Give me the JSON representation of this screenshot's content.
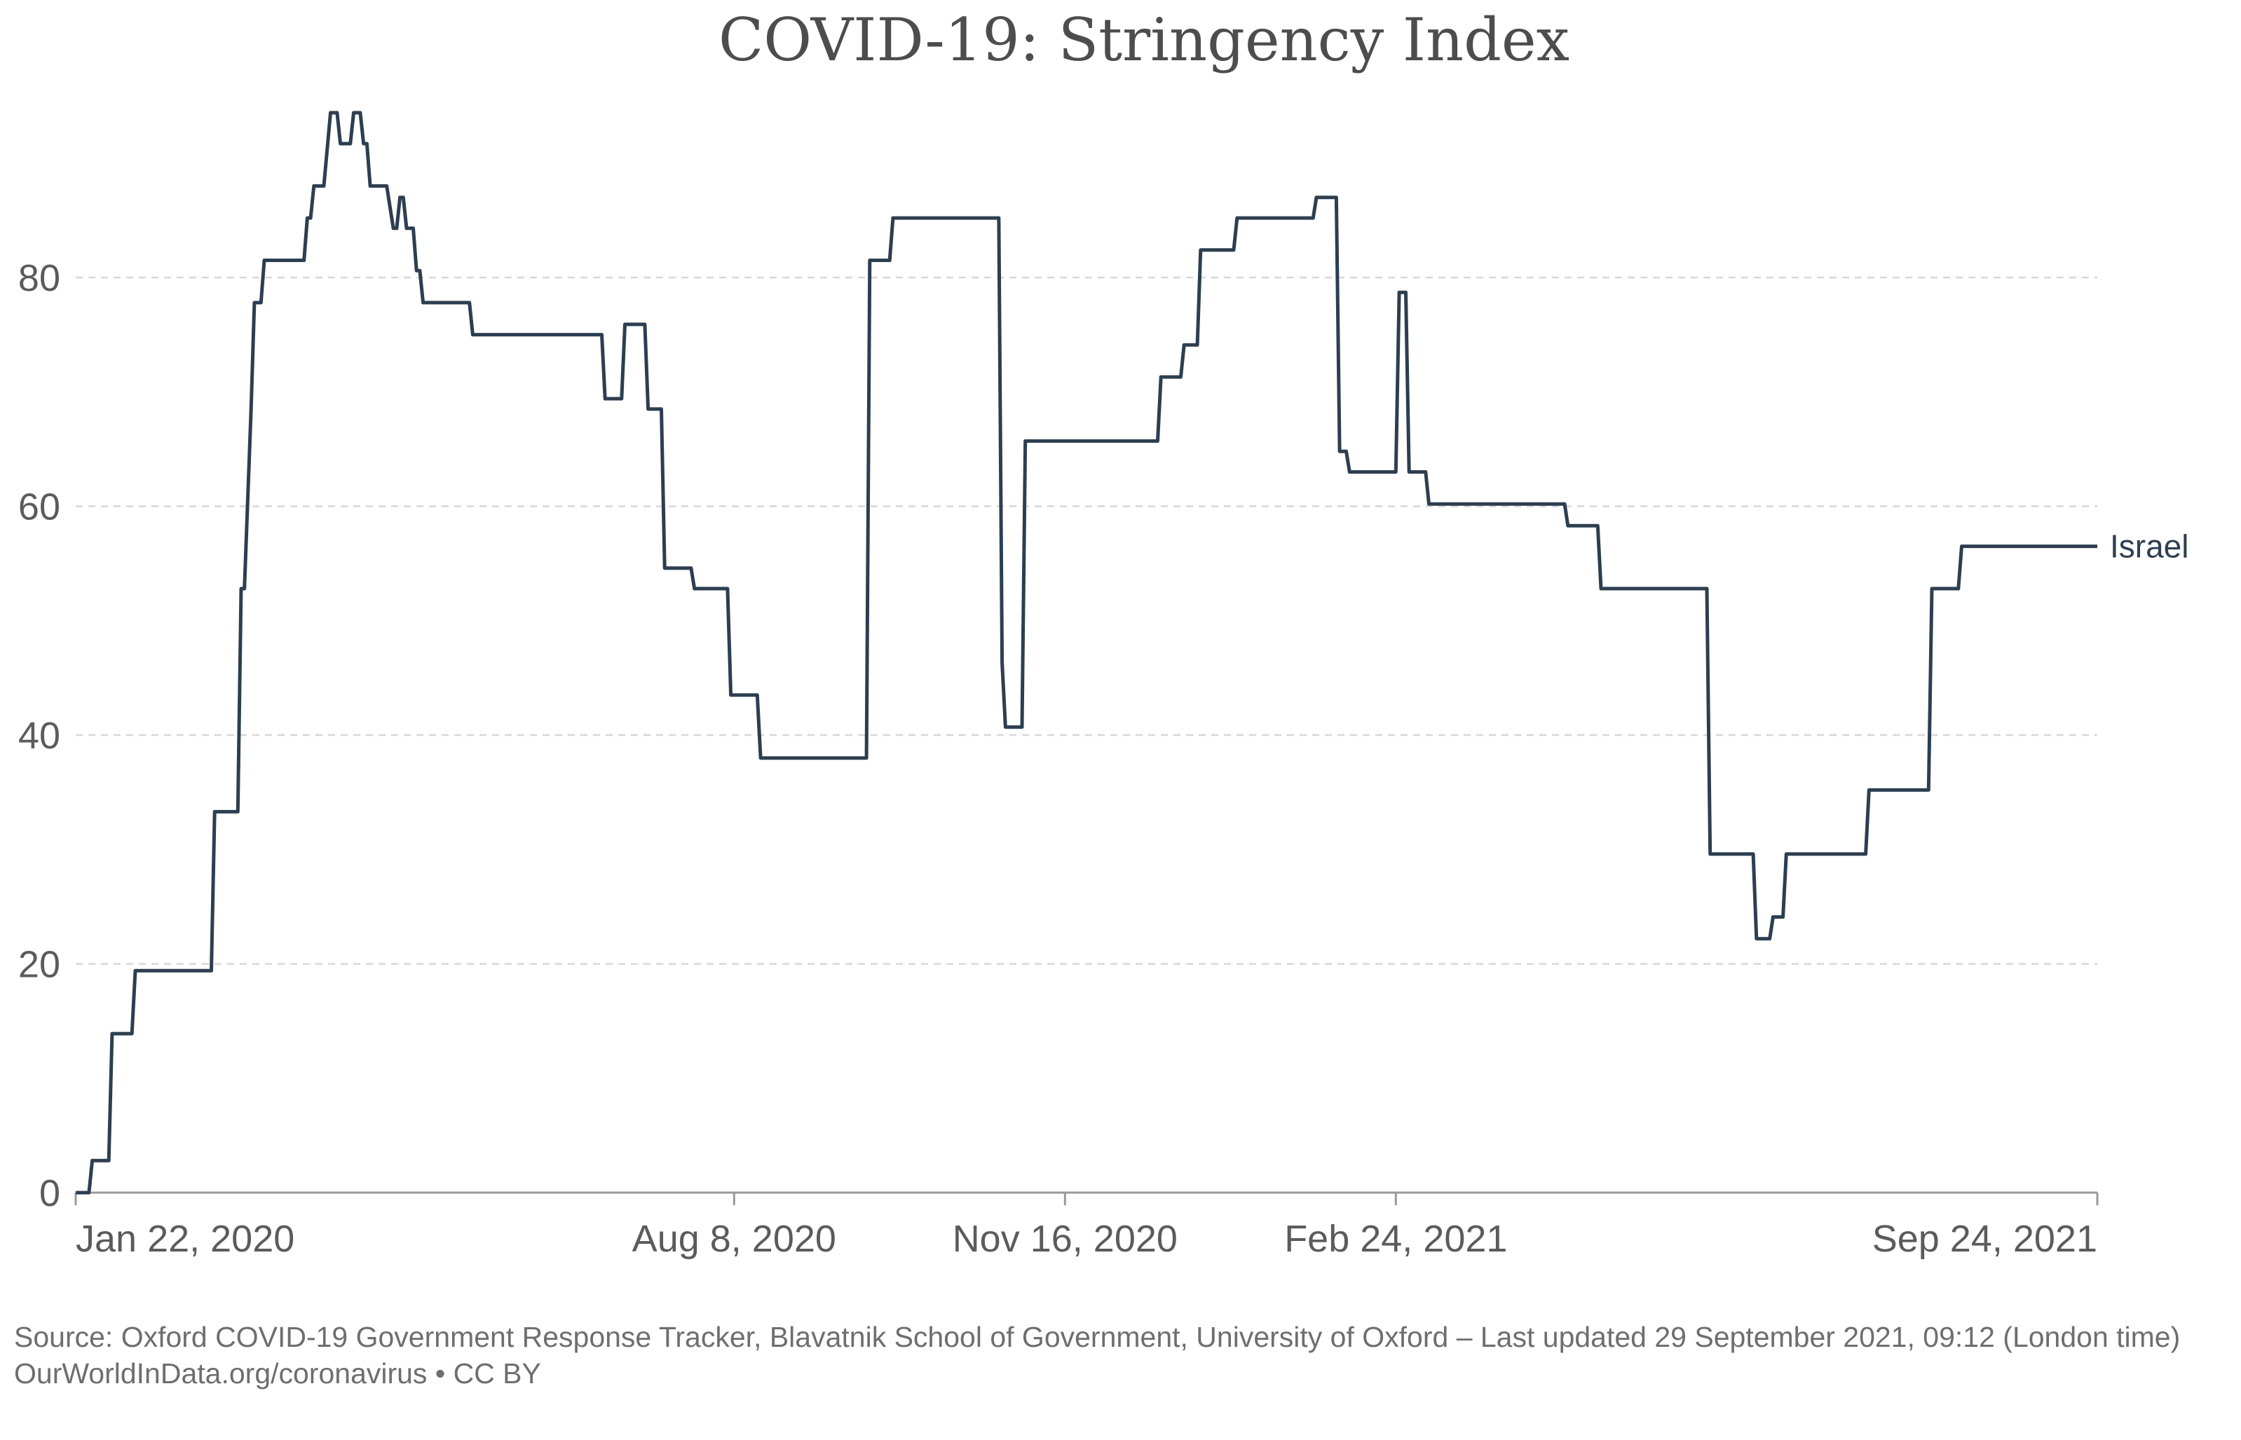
{
  "chart_data": {
    "type": "line",
    "title": "COVID-19: Stringency Index",
    "xlabel": "",
    "ylabel": "",
    "ylim": [
      0,
      100
    ],
    "yticks": [
      0,
      20,
      40,
      60,
      80
    ],
    "grid": true,
    "x_domain_days": [
      0,
      611
    ],
    "x_ticks": [
      {
        "day": 0,
        "label": "Jan 22, 2020"
      },
      {
        "day": 199,
        "label": "Aug 8, 2020"
      },
      {
        "day": 299,
        "label": "Nov 16, 2020"
      },
      {
        "day": 399,
        "label": "Feb 24, 2021"
      },
      {
        "day": 611,
        "label": "Sep 24, 2021"
      }
    ],
    "series": [
      {
        "name": "Israel",
        "color": "#2d3e50",
        "points": [
          [
            0,
            0
          ],
          [
            4,
            0
          ],
          [
            5,
            2.8
          ],
          [
            10,
            2.8
          ],
          [
            11,
            13.9
          ],
          [
            17,
            13.9
          ],
          [
            18,
            19.4
          ],
          [
            41,
            19.4
          ],
          [
            42,
            33.3
          ],
          [
            49,
            33.3
          ],
          [
            50,
            52.8
          ],
          [
            51,
            52.8
          ],
          [
            53,
            68.5
          ],
          [
            54,
            77.8
          ],
          [
            56,
            77.8
          ],
          [
            57,
            81.5
          ],
          [
            69,
            81.5
          ],
          [
            70,
            85.2
          ],
          [
            71,
            85.2
          ],
          [
            72,
            88
          ],
          [
            75,
            88
          ],
          [
            77,
            94.4
          ],
          [
            79,
            94.4
          ],
          [
            80,
            91.7
          ],
          [
            83,
            91.7
          ],
          [
            84,
            94.4
          ],
          [
            86,
            94.4
          ],
          [
            87,
            91.7
          ],
          [
            88,
            91.7
          ],
          [
            89,
            88
          ],
          [
            94,
            88
          ],
          [
            96,
            84.3
          ],
          [
            97,
            84.3
          ],
          [
            98,
            87
          ],
          [
            99,
            87
          ],
          [
            100,
            84.3
          ],
          [
            102,
            84.3
          ],
          [
            103,
            80.6
          ],
          [
            104,
            80.6
          ],
          [
            105,
            77.8
          ],
          [
            119,
            77.8
          ],
          [
            120,
            75
          ],
          [
            159,
            75
          ],
          [
            160,
            69.4
          ],
          [
            165,
            69.4
          ],
          [
            166,
            75.9
          ],
          [
            172,
            75.9
          ],
          [
            173,
            68.5
          ],
          [
            177,
            68.5
          ],
          [
            178,
            54.6
          ],
          [
            186,
            54.6
          ],
          [
            187,
            52.8
          ],
          [
            197,
            52.8
          ],
          [
            198,
            43.5
          ],
          [
            206,
            43.5
          ],
          [
            207,
            38
          ],
          [
            239,
            38
          ],
          [
            240,
            81.5
          ],
          [
            246,
            81.5
          ],
          [
            247,
            85.2
          ],
          [
            279,
            85.2
          ],
          [
            280,
            46.3
          ],
          [
            281,
            40.7
          ],
          [
            286,
            40.7
          ],
          [
            287,
            65.7
          ],
          [
            327,
            65.7
          ],
          [
            328,
            71.3
          ],
          [
            334,
            71.3
          ],
          [
            335,
            74.1
          ],
          [
            339,
            74.1
          ],
          [
            340,
            82.4
          ],
          [
            350,
            82.4
          ],
          [
            351,
            85.2
          ],
          [
            374,
            85.2
          ],
          [
            375,
            87
          ],
          [
            381,
            87
          ],
          [
            382,
            64.8
          ],
          [
            384,
            64.8
          ],
          [
            385,
            63
          ],
          [
            399,
            63
          ],
          [
            400,
            78.7
          ],
          [
            402,
            78.7
          ],
          [
            403,
            63
          ],
          [
            408,
            63
          ],
          [
            409,
            60.2
          ],
          [
            450,
            60.2
          ],
          [
            451,
            58.3
          ],
          [
            460,
            58.3
          ],
          [
            461,
            52.8
          ],
          [
            493,
            52.8
          ],
          [
            494,
            29.6
          ],
          [
            507,
            29.6
          ],
          [
            508,
            22.2
          ],
          [
            512,
            22.2
          ],
          [
            513,
            24.1
          ],
          [
            516,
            24.1
          ],
          [
            517,
            29.6
          ],
          [
            541,
            29.6
          ],
          [
            542,
            35.2
          ],
          [
            560,
            35.2
          ],
          [
            561,
            52.8
          ],
          [
            569,
            52.8
          ],
          [
            570,
            56.5
          ],
          [
            611,
            56.5
          ]
        ]
      }
    ]
  },
  "footer": {
    "source": "Source: Oxford COVID-19 Government Response Tracker, Blavatnik School of Government, University of Oxford – Last updated 29 September 2021, 09:12 (London time)",
    "credit": "OurWorldInData.org/coronavirus • CC BY"
  }
}
